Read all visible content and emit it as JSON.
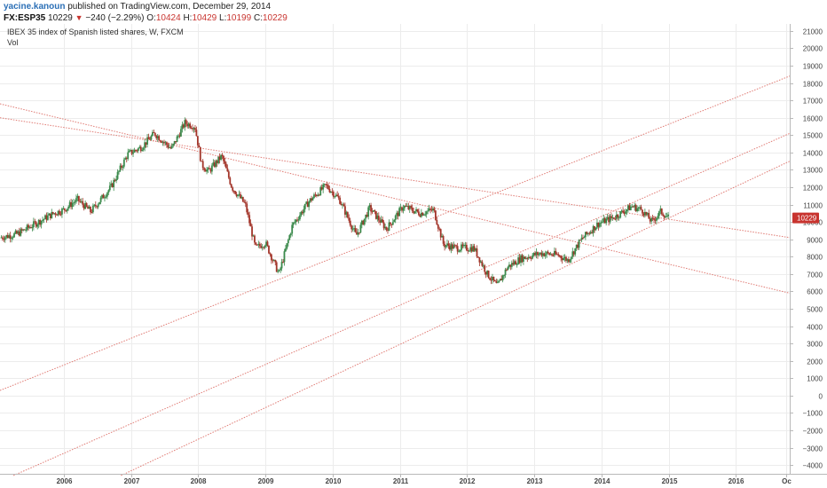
{
  "header": {
    "author": "yacine.kanoun",
    "published": "published on TradingView.com, December 29, 2014",
    "symbol": "FX:ESP35",
    "last": "10229",
    "arrow": "▼",
    "change": "−240 (−2.29%)",
    "o_label": "O:",
    "o_value": "10424",
    "h_label": "H:",
    "h_value": "10429",
    "l_label": "L:",
    "l_value": "10199",
    "c_label": "C:",
    "c_value": "10229"
  },
  "colors": {
    "up": "#3b8a4c",
    "down": "#a3352a",
    "trendline": "#e07b74",
    "price_tag": "#c8342f",
    "grid": "#ececec"
  },
  "chart_data": {
    "type": "candlestick",
    "title": "IBEX 35 index of Spanish listed shares, W, FXCM",
    "subtitle": "Vol",
    "x_tick_labels": [
      "2006",
      "2007",
      "2008",
      "2009",
      "2010",
      "2011",
      "2012",
      "2013",
      "2014",
      "2015",
      "2016",
      "Oc"
    ],
    "x_tick_years": [
      2006,
      2007,
      2008,
      2009,
      2010,
      2011,
      2012,
      2013,
      2014,
      2015,
      2016,
      2016.75
    ],
    "x_range": [
      2005.05,
      2016.8
    ],
    "y_ticks": [
      21000,
      20000,
      19000,
      18000,
      17000,
      16000,
      15000,
      14000,
      13000,
      12000,
      11000,
      10000,
      9000,
      8000,
      7000,
      6000,
      5000,
      4000,
      3000,
      2000,
      1000,
      0,
      -1000,
      -2000,
      -3000,
      -4000
    ],
    "y_tick_labels": [
      "21000",
      "20000",
      "19000",
      "18000",
      "17000",
      "16000",
      "15000",
      "14000",
      "13000",
      "12000",
      "11000",
      "10000",
      "9000",
      "8000",
      "7000",
      "6000",
      "5000",
      "4000",
      "3000",
      "2000",
      "1000",
      "0",
      "−1000",
      "−2000",
      "−3000",
      "−4000"
    ],
    "y_range": [
      -4500,
      21400
    ],
    "last_price_label": "10229",
    "last_price": 10229,
    "price_path": [
      {
        "t": 2005.05,
        "v": 9100
      },
      {
        "t": 2005.3,
        "v": 9300
      },
      {
        "t": 2005.6,
        "v": 9950
      },
      {
        "t": 2005.85,
        "v": 10500
      },
      {
        "t": 2006.0,
        "v": 10700
      },
      {
        "t": 2006.2,
        "v": 11300
      },
      {
        "t": 2006.4,
        "v": 10600
      },
      {
        "t": 2006.7,
        "v": 12000
      },
      {
        "t": 2006.95,
        "v": 13900
      },
      {
        "t": 2007.15,
        "v": 14300
      },
      {
        "t": 2007.35,
        "v": 15100
      },
      {
        "t": 2007.6,
        "v": 14200
      },
      {
        "t": 2007.8,
        "v": 15700
      },
      {
        "t": 2007.95,
        "v": 15500
      },
      {
        "t": 2008.05,
        "v": 13300
      },
      {
        "t": 2008.15,
        "v": 12900
      },
      {
        "t": 2008.35,
        "v": 13800
      },
      {
        "t": 2008.5,
        "v": 12000
      },
      {
        "t": 2008.7,
        "v": 11000
      },
      {
        "t": 2008.85,
        "v": 8500
      },
      {
        "t": 2009.0,
        "v": 8800
      },
      {
        "t": 2009.2,
        "v": 7000
      },
      {
        "t": 2009.4,
        "v": 9800
      },
      {
        "t": 2009.65,
        "v": 11200
      },
      {
        "t": 2009.9,
        "v": 12100
      },
      {
        "t": 2010.1,
        "v": 11300
      },
      {
        "t": 2010.35,
        "v": 9200
      },
      {
        "t": 2010.55,
        "v": 10800
      },
      {
        "t": 2010.8,
        "v": 9600
      },
      {
        "t": 2011.05,
        "v": 10900
      },
      {
        "t": 2011.3,
        "v": 10500
      },
      {
        "t": 2011.5,
        "v": 10700
      },
      {
        "t": 2011.65,
        "v": 8700
      },
      {
        "t": 2011.85,
        "v": 8500
      },
      {
        "t": 2012.1,
        "v": 8500
      },
      {
        "t": 2012.3,
        "v": 7000
      },
      {
        "t": 2012.45,
        "v": 6300
      },
      {
        "t": 2012.6,
        "v": 7400
      },
      {
        "t": 2012.8,
        "v": 7900
      },
      {
        "t": 2013.1,
        "v": 8200
      },
      {
        "t": 2013.35,
        "v": 8100
      },
      {
        "t": 2013.5,
        "v": 7800
      },
      {
        "t": 2013.7,
        "v": 9000
      },
      {
        "t": 2013.95,
        "v": 9900
      },
      {
        "t": 2014.2,
        "v": 10300
      },
      {
        "t": 2014.45,
        "v": 10900
      },
      {
        "t": 2014.6,
        "v": 10700
      },
      {
        "t": 2014.75,
        "v": 10000
      },
      {
        "t": 2014.88,
        "v": 10600
      },
      {
        "t": 2015.0,
        "v": 10229
      }
    ],
    "trendlines": [
      {
        "t1": 2005.05,
        "v1": 16800,
        "t2": 2016.8,
        "v2": 5900
      },
      {
        "t1": 2005.05,
        "v1": 16000,
        "t2": 2016.8,
        "v2": 9100
      },
      {
        "t1": 2005.05,
        "v1": 300,
        "t2": 2016.8,
        "v2": 18400
      },
      {
        "t1": 2005.25,
        "v1": -4600,
        "t2": 2016.8,
        "v2": 15100
      },
      {
        "t1": 2006.85,
        "v1": -4600,
        "t2": 2016.8,
        "v2": 13500
      }
    ]
  }
}
